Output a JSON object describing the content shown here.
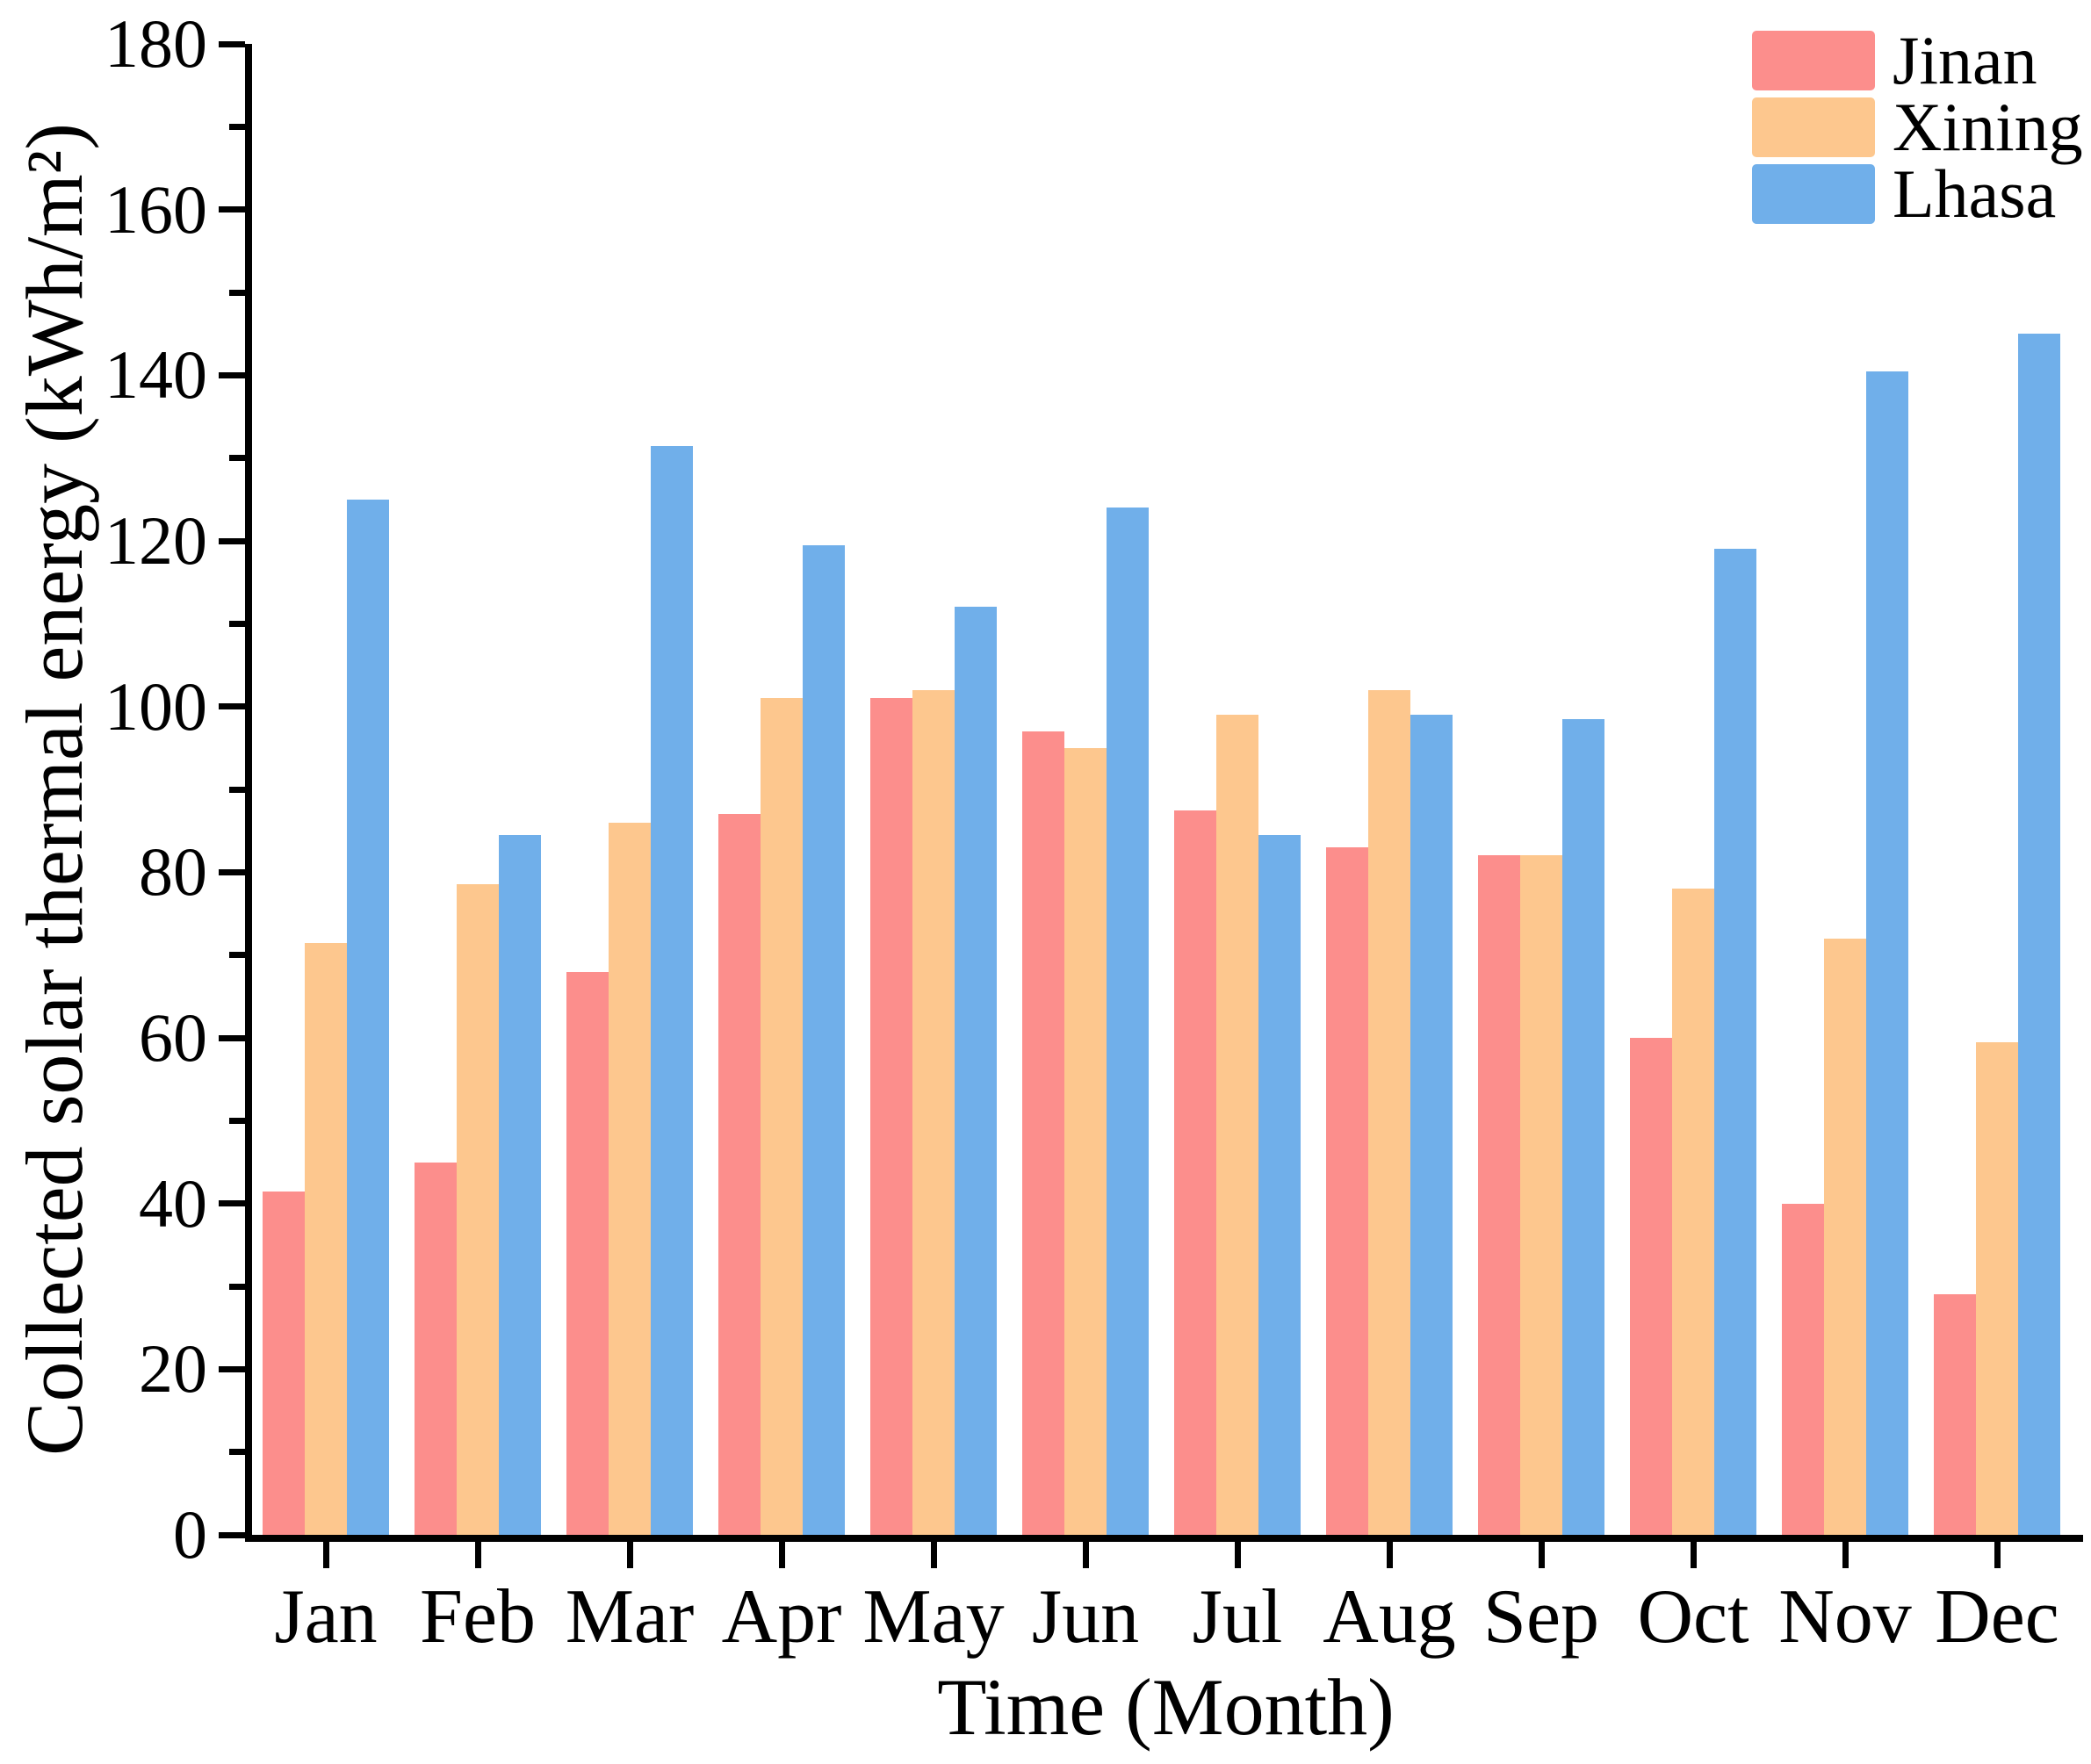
{
  "figure": {
    "background": "#ffffff",
    "axis_color": "#000000"
  },
  "chart_data": {
    "type": "bar",
    "title": "",
    "xlabel": "Time (Month)",
    "ylabel": "Collected solar thermal energy (kWh/m²)",
    "categories": [
      "Jan",
      "Feb",
      "Mar",
      "Apr",
      "May",
      "Jun",
      "Jul",
      "Aug",
      "Sep",
      "Oct",
      "Nov",
      "Dec"
    ],
    "series": [
      {
        "name": "Jinan",
        "color": "#FC8E8C",
        "values": [
          41.5,
          45,
          68,
          87,
          101,
          97,
          87.5,
          83,
          82,
          60,
          40,
          29
        ]
      },
      {
        "name": "Xining",
        "color": "#FDC78E",
        "values": [
          71.5,
          78.5,
          86,
          101,
          102,
          95,
          99,
          102,
          82,
          78,
          72,
          59.5
        ]
      },
      {
        "name": "Lhasa",
        "color": "#70AFEA",
        "values": [
          125,
          84.5,
          131.5,
          119.5,
          112,
          124,
          84.5,
          99,
          98.5,
          119,
          140.5,
          145
        ]
      }
    ],
    "ylim": [
      0,
      180
    ],
    "yticks": [
      0,
      20,
      40,
      60,
      80,
      100,
      120,
      140,
      160,
      180
    ],
    "ytick_minor_step": 10,
    "grid": false,
    "legend_position": "top-right",
    "bar_gap_within_group": 0
  }
}
